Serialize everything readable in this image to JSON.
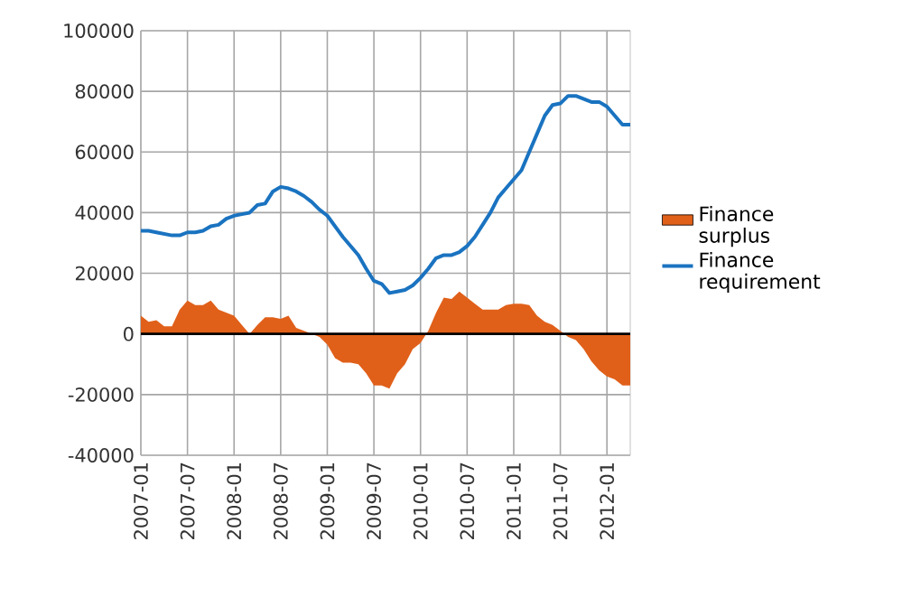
{
  "chart_data": {
    "type": "line",
    "x": [
      "2007-01",
      "2007-02",
      "2007-03",
      "2007-04",
      "2007-05",
      "2007-06",
      "2007-07",
      "2007-08",
      "2007-09",
      "2007-10",
      "2007-11",
      "2007-12",
      "2008-01",
      "2008-02",
      "2008-03",
      "2008-04",
      "2008-05",
      "2008-06",
      "2008-07",
      "2008-08",
      "2008-09",
      "2008-10",
      "2008-11",
      "2008-12",
      "2009-01",
      "2009-02",
      "2009-03",
      "2009-04",
      "2009-05",
      "2009-06",
      "2009-07",
      "2009-08",
      "2009-09",
      "2009-10",
      "2009-11",
      "2009-12",
      "2010-01",
      "2010-02",
      "2010-03",
      "2010-04",
      "2010-05",
      "2010-06",
      "2010-07",
      "2010-08",
      "2010-09",
      "2010-10",
      "2010-11",
      "2010-12",
      "2011-01",
      "2011-02",
      "2011-03",
      "2011-04",
      "2011-05",
      "2011-06",
      "2011-07",
      "2011-08",
      "2011-09",
      "2011-10",
      "2011-11",
      "2011-12",
      "2012-01",
      "2012-02",
      "2012-03",
      "2012-04"
    ],
    "series": [
      {
        "name": "Finance surplus",
        "type": "area",
        "color": "#e0601a",
        "values": [
          6000,
          4000,
          4500,
          2500,
          2500,
          8000,
          11000,
          9500,
          9500,
          11000,
          8000,
          7000,
          6000,
          3000,
          0,
          3000,
          5500,
          5500,
          5000,
          6000,
          2000,
          1000,
          0,
          -1000,
          -3500,
          -8000,
          -9500,
          -9500,
          -10000,
          -13000,
          -17000,
          -17000,
          -18000,
          -13000,
          -10000,
          -5000,
          -3000,
          1000,
          7000,
          12000,
          11500,
          14000,
          12000,
          10000,
          8000,
          8000,
          8000,
          9500,
          10000,
          10000,
          9500,
          6000,
          4000,
          3000,
          1000,
          -1000,
          -2000,
          -5000,
          -9000,
          -12000,
          -14000,
          -15000,
          -17000,
          -17000
        ]
      },
      {
        "name": "Finance requirement",
        "color": "#1a73c0",
        "values": [
          34000,
          34000,
          33500,
          33000,
          32500,
          32500,
          33500,
          33500,
          34000,
          35500,
          36000,
          38000,
          39000,
          39500,
          40000,
          42500,
          43000,
          47000,
          48500,
          48000,
          47000,
          45500,
          43500,
          41000,
          39000,
          35500,
          32000,
          29000,
          26000,
          21500,
          17500,
          16500,
          13500,
          14000,
          14500,
          16000,
          18500,
          21500,
          25000,
          26000,
          26000,
          27000,
          29000,
          32000,
          36000,
          40000,
          45000,
          48000,
          51000,
          54000,
          60000,
          66000,
          72000,
          75500,
          76000,
          78500,
          78500,
          77500,
          76500,
          76500,
          75000,
          72000,
          69000,
          69000
        ]
      }
    ],
    "xlim": [
      "2007-01",
      "2012-04"
    ],
    "xticks": [
      "2007-01",
      "2007-07",
      "2008-01",
      "2008-07",
      "2009-01",
      "2009-07",
      "2010-01",
      "2010-07",
      "2011-01",
      "2011-07",
      "2012-01"
    ],
    "ylim": [
      -40000,
      100000
    ],
    "yticks": [
      -40000,
      -20000,
      0,
      20000,
      40000,
      60000,
      80000,
      100000
    ],
    "ref_lines": [
      {
        "axis": "y",
        "value": 0
      }
    ],
    "grid": true,
    "legend": "right"
  }
}
